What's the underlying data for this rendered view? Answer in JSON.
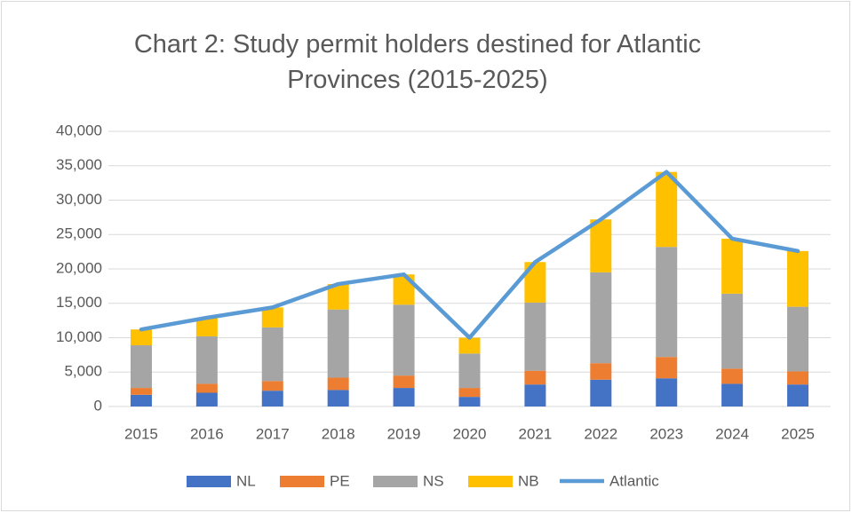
{
  "chart_data": {
    "type": "bar",
    "stacked": true,
    "title": "Chart 2: Study permit holders destined for Atlantic Provinces (2015-2025)",
    "categories": [
      "2015",
      "2016",
      "2017",
      "2018",
      "2019",
      "2020",
      "2021",
      "2022",
      "2023",
      "2024",
      "2025"
    ],
    "series": [
      {
        "name": "NL",
        "color": "#4472c4",
        "values": [
          1700,
          2000,
          2300,
          2400,
          2700,
          1400,
          3200,
          3900,
          4100,
          3300,
          3200
        ]
      },
      {
        "name": "PE",
        "color": "#ed7d31",
        "values": [
          1000,
          1300,
          1400,
          1800,
          1800,
          1300,
          2000,
          2400,
          3100,
          2200,
          1900
        ]
      },
      {
        "name": "NS",
        "color": "#a5a5a5",
        "values": [
          6200,
          6900,
          7800,
          9900,
          10300,
          5000,
          9900,
          13200,
          16000,
          10900,
          9400
        ]
      },
      {
        "name": "NB",
        "color": "#ffc000",
        "values": [
          2300,
          2700,
          2900,
          3700,
          4400,
          2300,
          5900,
          7700,
          10900,
          8000,
          8100
        ]
      },
      {
        "name": "Atlantic",
        "type": "line",
        "color": "#5b9bd5",
        "values": [
          11200,
          12900,
          14400,
          17800,
          19200,
          10000,
          21000,
          27200,
          34100,
          24400,
          22600
        ]
      }
    ],
    "ylim": [
      0,
      40000
    ],
    "yticks": [
      0,
      {
        "value": 5000,
        "label": "5,000"
      },
      {
        "value": 10000,
        "label": "10,000"
      },
      {
        "value": 15000,
        "label": "15,000"
      },
      {
        "value": 20000,
        "label": "20,000"
      },
      {
        "value": 25000,
        "label": "25,000"
      },
      {
        "value": 30000,
        "label": "30,000"
      },
      {
        "value": 35000,
        "label": "35,000"
      },
      {
        "value": 40000,
        "label": "40,000"
      }
    ],
    "grid": true,
    "legend": "bottom"
  }
}
